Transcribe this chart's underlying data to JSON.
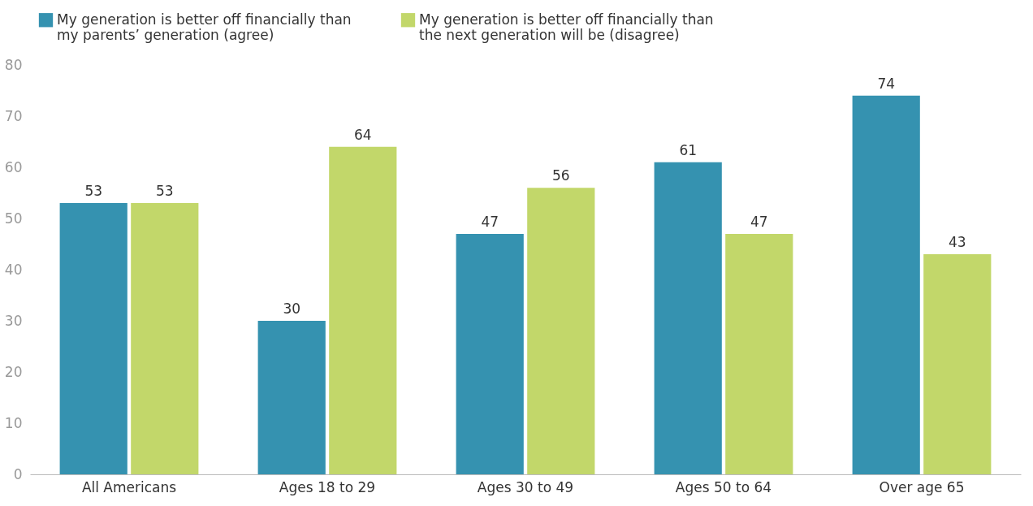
{
  "chart_data": {
    "type": "bar",
    "categories": [
      "All Americans",
      "Ages 18 to 29",
      "Ages 30 to 49",
      "Ages 50 to 64",
      "Over age 65"
    ],
    "series": [
      {
        "name": "My generation is better off financially than my parents’ generation (agree)",
        "color": "#3592b0",
        "values": [
          53,
          30,
          47,
          61,
          74
        ]
      },
      {
        "name": "My generation is better off financially than the next generation will be (disagree)",
        "color": "#c2d76a",
        "values": [
          53,
          64,
          56,
          47,
          43
        ]
      }
    ],
    "ylim": [
      0,
      80
    ],
    "yticks": [
      0,
      10,
      20,
      30,
      40,
      50,
      60,
      70,
      80
    ],
    "grid": false,
    "legend": "top",
    "data_labels": true
  }
}
